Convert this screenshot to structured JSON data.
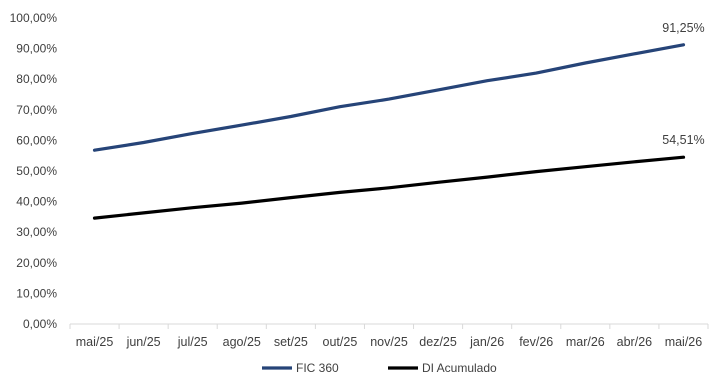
{
  "chart_data": {
    "type": "line",
    "categories": [
      "mai/25",
      "jun/25",
      "jul/25",
      "ago/25",
      "set/25",
      "out/25",
      "nov/25",
      "dez/25",
      "jan/26",
      "fev/26",
      "mar/26",
      "abr/26",
      "mai/26"
    ],
    "series": [
      {
        "name": "FIC 360",
        "color": "#264478",
        "values": [
          56.8,
          59.3,
          62.3,
          65.0,
          67.8,
          71.0,
          73.5,
          76.5,
          79.5,
          82.0,
          85.3,
          88.3,
          91.25
        ],
        "end_label": "91,25%"
      },
      {
        "name": "DI Acumulado",
        "color": "#000000",
        "values": [
          34.6,
          36.3,
          38.0,
          39.5,
          41.3,
          43.0,
          44.5,
          46.3,
          48.0,
          49.8,
          51.4,
          53.0,
          54.51
        ],
        "end_label": "54,51%"
      }
    ],
    "y_ticks": [
      "0,00%",
      "10,00%",
      "20,00%",
      "30,00%",
      "40,00%",
      "50,00%",
      "60,00%",
      "70,00%",
      "80,00%",
      "90,00%",
      "100,00%"
    ],
    "ylim": [
      0,
      100
    ],
    "grid": false,
    "legend": "bottom",
    "title": "",
    "xlabel": "",
    "ylabel": ""
  }
}
